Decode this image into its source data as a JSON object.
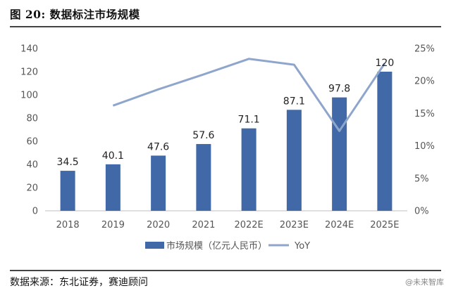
{
  "figure": {
    "title": "图 20: 数据标注市场规模",
    "source": "数据来源：东北证券，赛迪顾问",
    "watermark": "@未来智库"
  },
  "colors": {
    "bar": "#4169a8",
    "line": "#8fa6cc",
    "axis_text": "#555555",
    "label_text": "#222222"
  },
  "chart_data": {
    "type": "bar",
    "categories": [
      "2018",
      "2019",
      "2020",
      "2021",
      "2022E",
      "2023E",
      "2024E",
      "2025E"
    ],
    "series": [
      {
        "name": "市场规模（亿元人民币）",
        "type": "bar",
        "axis": "left",
        "values": [
          34.5,
          40.1,
          47.6,
          57.6,
          71.1,
          87.1,
          97.8,
          120
        ],
        "labels": [
          "34.5",
          "40.1",
          "47.6",
          "57.6",
          "71.1",
          "87.1",
          "97.8",
          "120"
        ]
      },
      {
        "name": "YoY",
        "type": "line",
        "axis": "right",
        "values": [
          null,
          16.2,
          18.7,
          21.0,
          23.4,
          22.5,
          12.3,
          22.7
        ]
      }
    ],
    "y_left": {
      "min": 0,
      "max": 140,
      "ticks": [
        "0",
        "20",
        "40",
        "60",
        "80",
        "100",
        "120",
        "140"
      ]
    },
    "y_right": {
      "min": 0,
      "max": 25,
      "ticks": [
        "0%",
        "5%",
        "10%",
        "15%",
        "20%",
        "25%"
      ]
    },
    "grid": false,
    "legend": "bottom"
  }
}
